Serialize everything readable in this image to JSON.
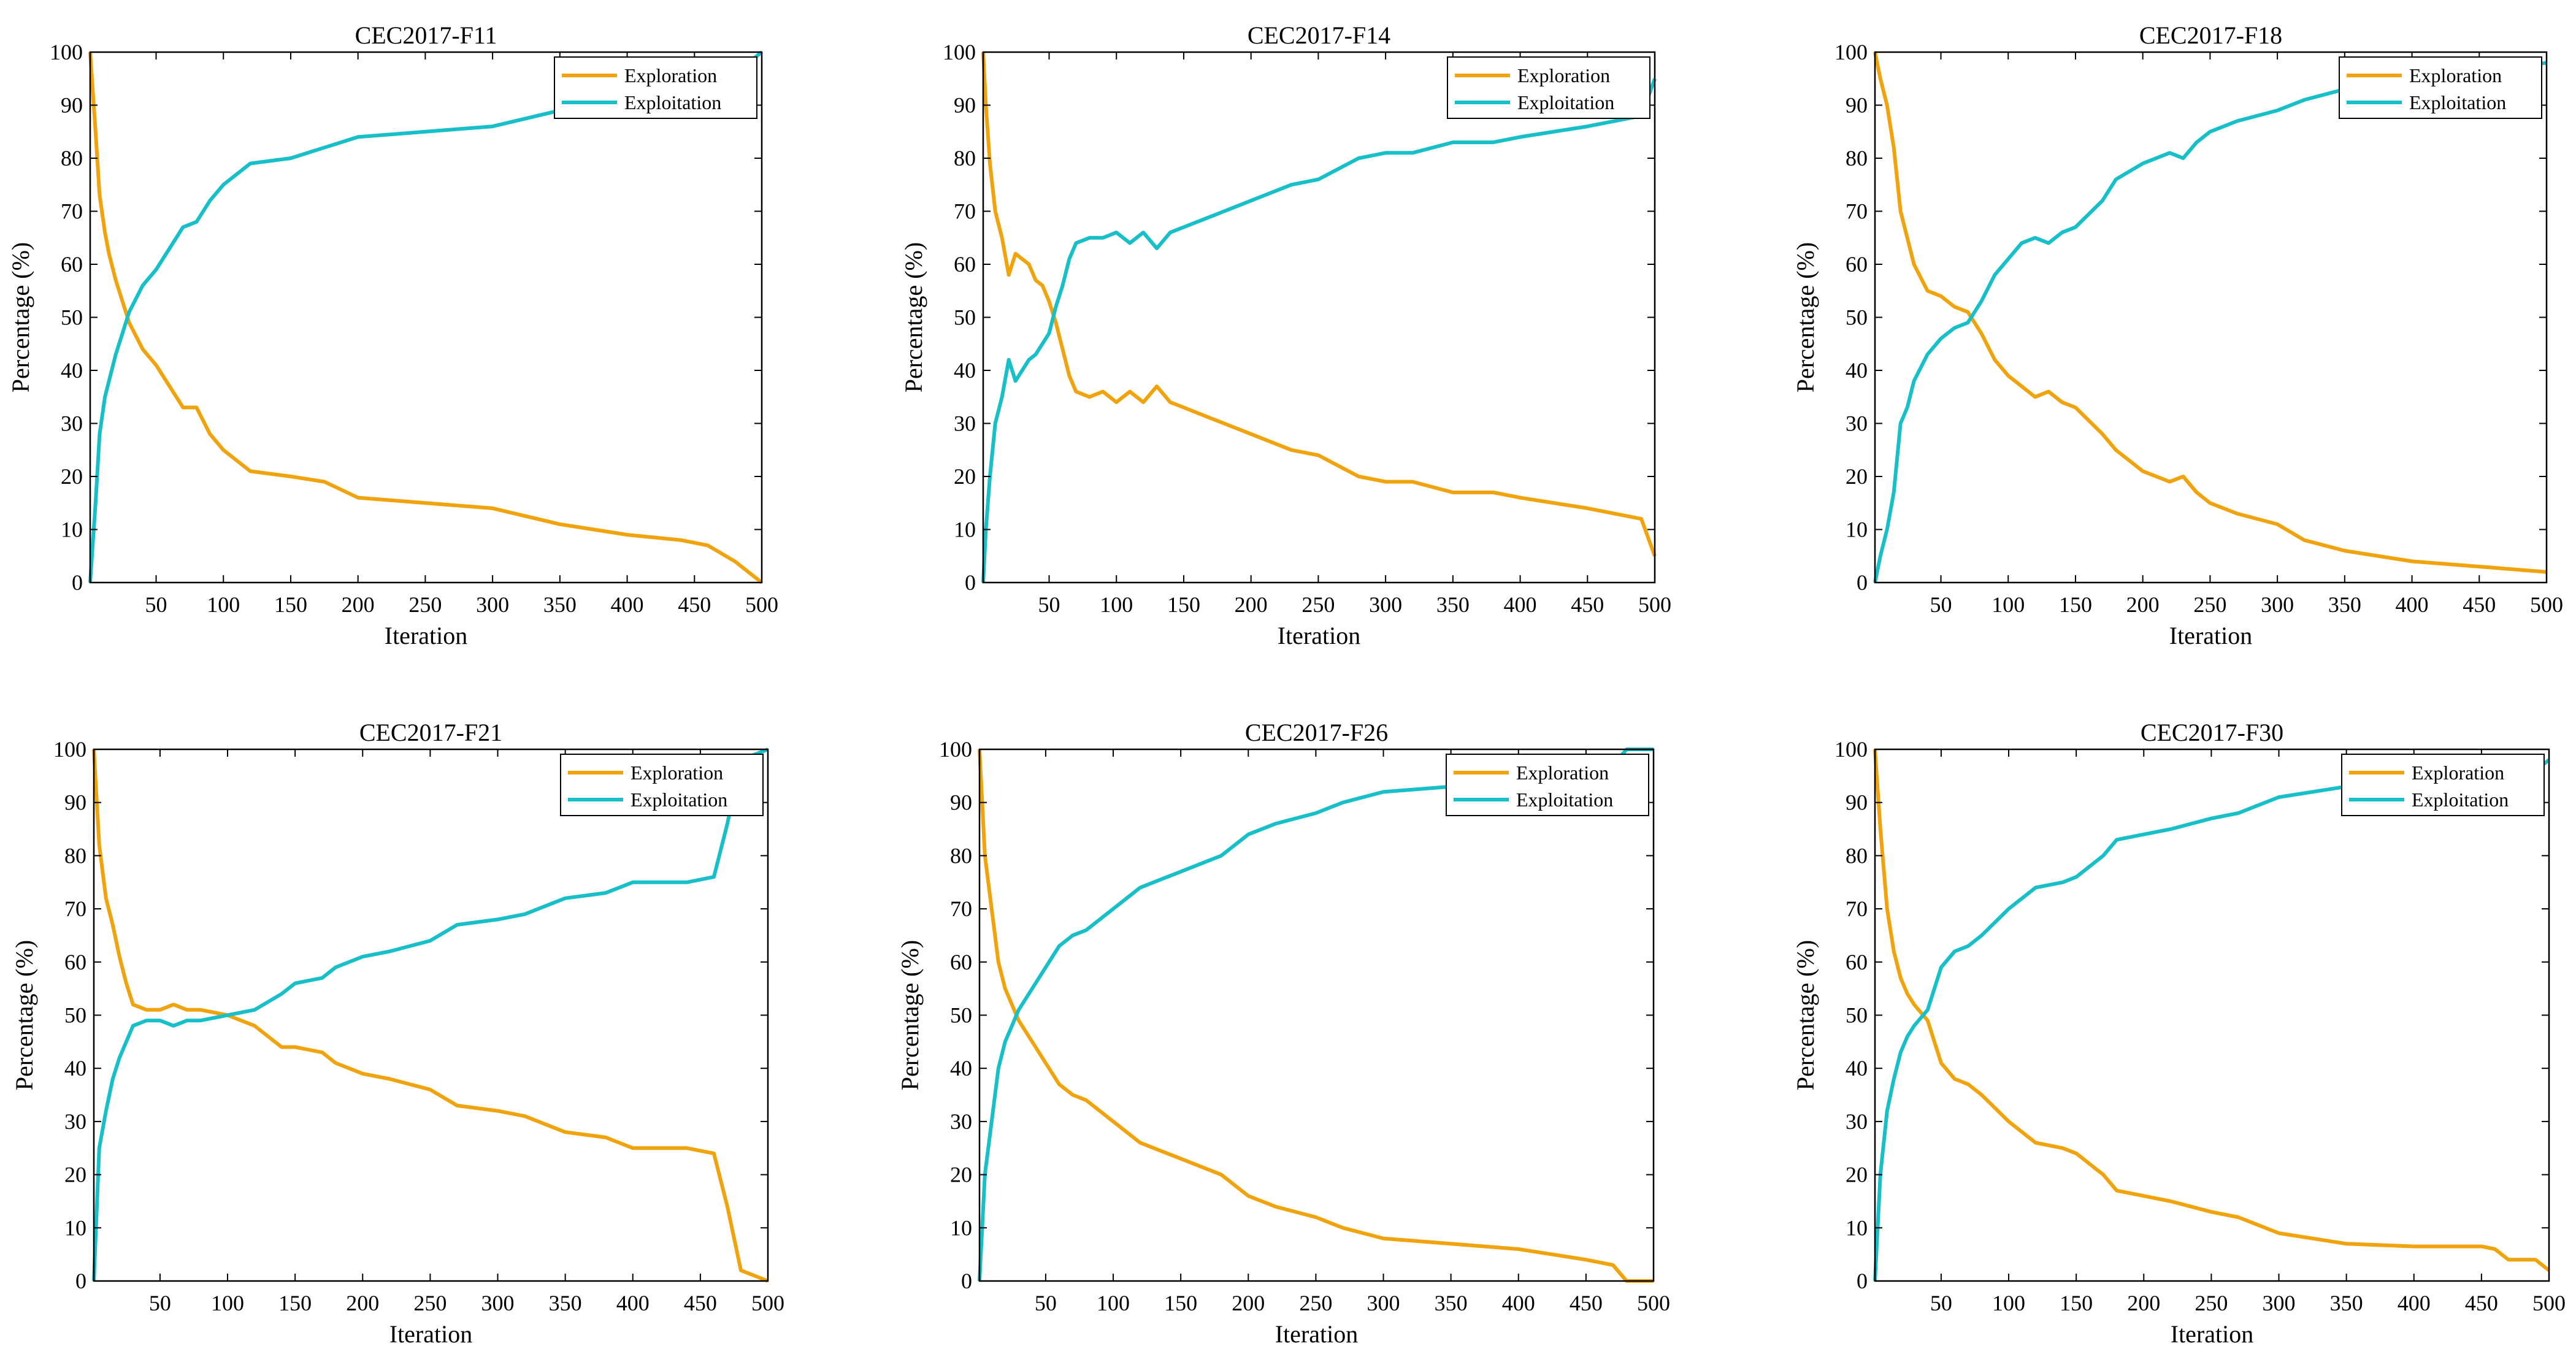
{
  "colors": {
    "exploration": "#F0A30A",
    "exploitation": "#17BFC8"
  },
  "chart_data": [
    {
      "type": "line",
      "title": "CEC2017-F11",
      "xlabel": "Iteration",
      "ylabel": "Percentage (%)",
      "xlim": [
        1,
        500
      ],
      "ylim": [
        0,
        100
      ],
      "xticks": [
        50,
        100,
        150,
        200,
        250,
        300,
        350,
        400,
        450,
        500
      ],
      "yticks": [
        0,
        10,
        20,
        30,
        40,
        50,
        60,
        70,
        80,
        90,
        100
      ],
      "legend_position": "top-right",
      "series": [
        {
          "name": "Exploration",
          "color": "#F0A30A",
          "x": [
            1,
            5,
            8,
            12,
            15,
            20,
            25,
            30,
            40,
            50,
            60,
            70,
            80,
            90,
            100,
            120,
            150,
            175,
            200,
            250,
            300,
            350,
            400,
            440,
            460,
            480,
            500
          ],
          "y": [
            100,
            85,
            73,
            66,
            62,
            57,
            53,
            49,
            44,
            41,
            37,
            33,
            33,
            28,
            25,
            21,
            20,
            19,
            16,
            15,
            14,
            11,
            9,
            8,
            7,
            4,
            0
          ]
        },
        {
          "name": "Exploitation",
          "color": "#17BFC8",
          "x": [
            1,
            5,
            8,
            12,
            15,
            20,
            25,
            30,
            40,
            50,
            60,
            70,
            80,
            90,
            100,
            120,
            150,
            175,
            200,
            250,
            300,
            350,
            400,
            440,
            460,
            480,
            500
          ],
          "y": [
            0,
            15,
            28,
            35,
            38,
            43,
            47,
            51,
            56,
            59,
            63,
            67,
            68,
            72,
            75,
            79,
            80,
            82,
            84,
            85,
            86,
            89,
            91,
            92,
            93,
            96,
            100
          ]
        }
      ]
    },
    {
      "type": "line",
      "title": "CEC2017-F14",
      "xlabel": "Iteration",
      "ylabel": "Percentage (%)",
      "xlim": [
        1,
        500
      ],
      "ylim": [
        0,
        100
      ],
      "xticks": [
        50,
        100,
        150,
        200,
        250,
        300,
        350,
        400,
        450,
        500
      ],
      "yticks": [
        0,
        10,
        20,
        30,
        40,
        50,
        60,
        70,
        80,
        90,
        100
      ],
      "legend_position": "top-right",
      "series": [
        {
          "name": "Exploration",
          "color": "#F0A30A",
          "x": [
            1,
            3,
            6,
            10,
            15,
            20,
            25,
            30,
            35,
            40,
            45,
            50,
            55,
            60,
            65,
            70,
            80,
            90,
            100,
            110,
            120,
            130,
            140,
            150,
            170,
            200,
            230,
            250,
            280,
            300,
            320,
            350,
            380,
            400,
            450,
            490,
            500
          ],
          "y": [
            100,
            90,
            79,
            70,
            65,
            58,
            62,
            61,
            60,
            57,
            56,
            53,
            49,
            44,
            39,
            36,
            35,
            36,
            34,
            36,
            34,
            37,
            34,
            33,
            31,
            28,
            25,
            24,
            20,
            19,
            19,
            17,
            17,
            16,
            14,
            12,
            5
          ]
        },
        {
          "name": "Exploitation",
          "color": "#17BFC8",
          "x": [
            1,
            3,
            6,
            10,
            15,
            20,
            25,
            30,
            35,
            40,
            45,
            50,
            55,
            60,
            65,
            70,
            80,
            90,
            100,
            110,
            120,
            130,
            140,
            150,
            170,
            200,
            230,
            250,
            280,
            300,
            320,
            350,
            380,
            400,
            450,
            490,
            500
          ],
          "y": [
            0,
            10,
            20,
            30,
            35,
            42,
            38,
            40,
            42,
            43,
            45,
            47,
            52,
            56,
            61,
            64,
            65,
            65,
            66,
            64,
            66,
            63,
            66,
            67,
            69,
            72,
            75,
            76,
            80,
            81,
            81,
            83,
            83,
            84,
            86,
            88,
            95
          ]
        }
      ]
    },
    {
      "type": "line",
      "title": "CEC2017-F18",
      "xlabel": "Iteration",
      "ylabel": "Percentage (%)",
      "xlim": [
        1,
        500
      ],
      "ylim": [
        0,
        100
      ],
      "xticks": [
        50,
        100,
        150,
        200,
        250,
        300,
        350,
        400,
        450,
        500
      ],
      "yticks": [
        0,
        10,
        20,
        30,
        40,
        50,
        60,
        70,
        80,
        90,
        100
      ],
      "legend_position": "top-right",
      "series": [
        {
          "name": "Exploration",
          "color": "#F0A30A",
          "x": [
            1,
            5,
            10,
            15,
            20,
            25,
            30,
            40,
            50,
            60,
            70,
            80,
            90,
            100,
            110,
            120,
            130,
            140,
            150,
            170,
            180,
            200,
            220,
            230,
            240,
            250,
            270,
            300,
            320,
            350,
            400,
            450,
            500
          ],
          "y": [
            100,
            95,
            90,
            82,
            70,
            65,
            60,
            55,
            54,
            52,
            51,
            47,
            42,
            39,
            37,
            35,
            36,
            34,
            33,
            28,
            25,
            21,
            19,
            20,
            17,
            15,
            13,
            11,
            8,
            6,
            4,
            3,
            2
          ]
        },
        {
          "name": "Exploitation",
          "color": "#17BFC8",
          "x": [
            1,
            5,
            10,
            15,
            20,
            25,
            30,
            40,
            50,
            60,
            70,
            80,
            90,
            100,
            110,
            120,
            130,
            140,
            150,
            170,
            180,
            200,
            220,
            230,
            240,
            250,
            270,
            300,
            320,
            350,
            400,
            450,
            500
          ],
          "y": [
            0,
            5,
            10,
            17,
            30,
            33,
            38,
            43,
            46,
            48,
            49,
            53,
            58,
            61,
            64,
            65,
            64,
            66,
            67,
            72,
            76,
            79,
            81,
            80,
            83,
            85,
            87,
            89,
            91,
            93,
            95,
            96,
            98
          ]
        }
      ]
    },
    {
      "type": "line",
      "title": "CEC2017-F21",
      "xlabel": "Iteration",
      "ylabel": "Percentage (%)",
      "xlim": [
        1,
        500
      ],
      "ylim": [
        0,
        100
      ],
      "xticks": [
        50,
        100,
        150,
        200,
        250,
        300,
        350,
        400,
        450,
        500
      ],
      "yticks": [
        0,
        10,
        20,
        30,
        40,
        50,
        60,
        70,
        80,
        90,
        100
      ],
      "legend_position": "top-right",
      "series": [
        {
          "name": "Exploration",
          "color": "#F0A30A",
          "x": [
            1,
            5,
            10,
            15,
            20,
            25,
            30,
            40,
            50,
            60,
            70,
            80,
            100,
            120,
            140,
            150,
            170,
            180,
            200,
            220,
            250,
            270,
            300,
            320,
            350,
            380,
            400,
            440,
            460,
            470,
            480,
            490,
            500
          ],
          "y": [
            100,
            82,
            72,
            67,
            61,
            56,
            52,
            51,
            51,
            52,
            51,
            51,
            50,
            48,
            44,
            44,
            43,
            41,
            39,
            38,
            36,
            33,
            32,
            31,
            28,
            27,
            25,
            25,
            24,
            14,
            2,
            1,
            0
          ]
        },
        {
          "name": "Exploitation",
          "color": "#17BFC8",
          "x": [
            1,
            5,
            10,
            15,
            20,
            25,
            30,
            40,
            50,
            60,
            70,
            80,
            100,
            120,
            140,
            150,
            170,
            180,
            200,
            220,
            250,
            270,
            300,
            320,
            350,
            380,
            400,
            440,
            460,
            470,
            480,
            490,
            500
          ],
          "y": [
            0,
            25,
            32,
            38,
            42,
            45,
            48,
            49,
            49,
            48,
            49,
            49,
            50,
            51,
            54,
            56,
            57,
            59,
            61,
            62,
            64,
            67,
            68,
            69,
            72,
            73,
            75,
            75,
            76,
            86,
            98,
            99,
            100
          ]
        }
      ]
    },
    {
      "type": "line",
      "title": "CEC2017-F26",
      "xlabel": "Iteration",
      "ylabel": "Percentage (%)",
      "xlim": [
        1,
        500
      ],
      "ylim": [
        0,
        100
      ],
      "xticks": [
        50,
        100,
        150,
        200,
        250,
        300,
        350,
        400,
        450,
        500
      ],
      "yticks": [
        0,
        10,
        20,
        30,
        40,
        50,
        60,
        70,
        80,
        90,
        100
      ],
      "legend_position": "top-right",
      "series": [
        {
          "name": "Exploration",
          "color": "#F0A30A",
          "x": [
            1,
            5,
            10,
            15,
            20,
            25,
            30,
            40,
            50,
            60,
            70,
            80,
            100,
            120,
            140,
            150,
            170,
            180,
            200,
            220,
            250,
            270,
            300,
            350,
            400,
            450,
            470,
            480,
            500
          ],
          "y": [
            100,
            80,
            70,
            60,
            55,
            52,
            49,
            45,
            41,
            37,
            35,
            34,
            30,
            26,
            24,
            23,
            21,
            20,
            16,
            14,
            12,
            10,
            8,
            7,
            6,
            4,
            3,
            0,
            0
          ]
        },
        {
          "name": "Exploitation",
          "color": "#17BFC8",
          "x": [
            1,
            5,
            10,
            15,
            20,
            25,
            30,
            40,
            50,
            60,
            70,
            80,
            100,
            120,
            140,
            150,
            170,
            180,
            200,
            220,
            250,
            270,
            300,
            350,
            400,
            450,
            470,
            480,
            500
          ],
          "y": [
            0,
            20,
            30,
            40,
            45,
            48,
            51,
            55,
            59,
            63,
            65,
            66,
            70,
            74,
            76,
            77,
            79,
            80,
            84,
            86,
            88,
            90,
            92,
            93,
            94,
            96,
            97,
            100,
            100
          ]
        }
      ]
    },
    {
      "type": "line",
      "title": "CEC2017-F30",
      "xlabel": "Iteration",
      "ylabel": "Percentage (%)",
      "xlim": [
        1,
        500
      ],
      "ylim": [
        0,
        100
      ],
      "xticks": [
        50,
        100,
        150,
        200,
        250,
        300,
        350,
        400,
        450,
        500
      ],
      "yticks": [
        0,
        10,
        20,
        30,
        40,
        50,
        60,
        70,
        80,
        90,
        100
      ],
      "legend_position": "top-right",
      "series": [
        {
          "name": "Exploration",
          "color": "#F0A30A",
          "x": [
            1,
            5,
            10,
            15,
            20,
            25,
            30,
            40,
            50,
            60,
            70,
            80,
            100,
            120,
            140,
            150,
            170,
            180,
            200,
            220,
            250,
            270,
            300,
            350,
            400,
            450,
            460,
            470,
            480,
            490,
            500
          ],
          "y": [
            100,
            85,
            70,
            62,
            57,
            54,
            52,
            49,
            41,
            38,
            37,
            35,
            30,
            26,
            25,
            24,
            20,
            17,
            16,
            15,
            13,
            12,
            9,
            7,
            6.5,
            6.5,
            6,
            4,
            4,
            4,
            2
          ]
        },
        {
          "name": "Exploitation",
          "color": "#17BFC8",
          "x": [
            1,
            5,
            10,
            15,
            20,
            25,
            30,
            40,
            50,
            60,
            70,
            80,
            100,
            120,
            140,
            150,
            170,
            180,
            200,
            220,
            250,
            270,
            300,
            350,
            400,
            450,
            460,
            470,
            480,
            490,
            500
          ],
          "y": [
            0,
            20,
            32,
            38,
            43,
            46,
            48,
            51,
            59,
            62,
            63,
            65,
            70,
            74,
            75,
            76,
            80,
            83,
            84,
            85,
            87,
            88,
            91,
            93,
            93.5,
            93.5,
            94,
            96,
            96,
            96,
            98
          ]
        }
      ]
    }
  ]
}
